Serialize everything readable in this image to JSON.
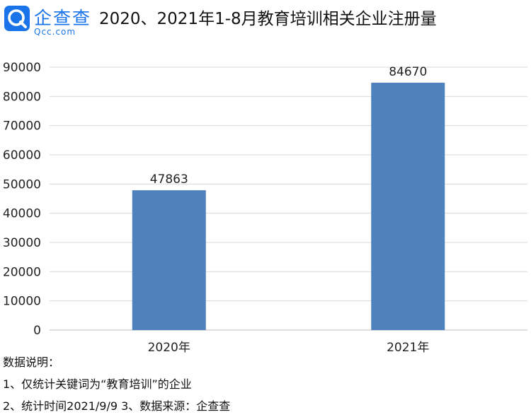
{
  "header": {
    "brand_name": "企查查",
    "brand_domain": "Qcc.com",
    "title": "2020、2021年1-8月教育培训相关企业注册量"
  },
  "chart_data": {
    "type": "bar",
    "title": "2020、2021年1-8月教育培训相关企业注册量",
    "categories": [
      "2020年",
      "2021年"
    ],
    "values": [
      47863,
      84670
    ],
    "ylim": [
      0,
      90000
    ],
    "yticks": [
      0,
      10000,
      20000,
      30000,
      40000,
      50000,
      60000,
      70000,
      80000,
      90000
    ],
    "xlabel": "",
    "ylabel": "",
    "grid": true,
    "legend": "none",
    "bar_color": "#4f81bd"
  },
  "notes": {
    "heading": "数据说明：",
    "line1": "1、仅统计关键词为“教育培训”的企业",
    "line2": "2、统计时间2021/9/9   3、数据来源：企查查"
  },
  "colors": {
    "brand": "#1a73e8",
    "bar": "#4f81bd",
    "grid": "#d9d9d9"
  }
}
